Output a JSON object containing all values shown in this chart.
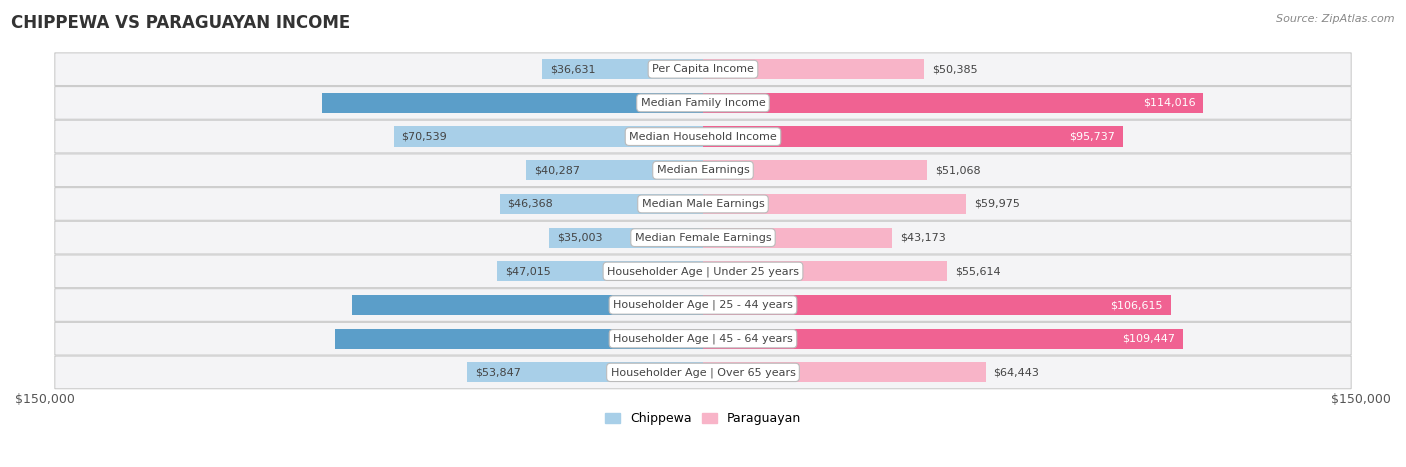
{
  "title": "CHIPPEWA VS PARAGUAYAN INCOME",
  "source": "Source: ZipAtlas.com",
  "max_value": 150000,
  "categories": [
    "Per Capita Income",
    "Median Family Income",
    "Median Household Income",
    "Median Earnings",
    "Median Male Earnings",
    "Median Female Earnings",
    "Householder Age | Under 25 years",
    "Householder Age | 25 - 44 years",
    "Householder Age | 45 - 64 years",
    "Householder Age | Over 65 years"
  ],
  "chippewa": [
    36631,
    86852,
    70539,
    40287,
    46368,
    35003,
    47015,
    80005,
    83943,
    53847
  ],
  "paraguayan": [
    50385,
    114016,
    95737,
    51068,
    59975,
    43173,
    55614,
    106615,
    109447,
    64443
  ],
  "chippewa_light_color": "#a8cfe8",
  "chippewa_dark_color": "#5b9ec9",
  "paraguayan_light_color": "#f8b4c8",
  "paraguayan_dark_color": "#f06292",
  "row_bg_color": "#f4f4f6",
  "row_border_color": "#cccccc",
  "label_bg_color": "#ffffff",
  "label_border_color": "#cccccc",
  "title_color": "#333333",
  "dark_value_threshold": 75000,
  "bar_height": 0.6,
  "background_color": "#ffffff",
  "xlabel_color": "#555555",
  "value_label_fontsize": 8,
  "category_fontsize": 8
}
